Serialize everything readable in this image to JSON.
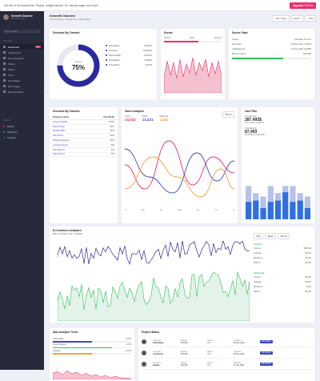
{
  "topbar": {
    "message": "Get this UI Kit components, Plugins, multiple layouts, 20+ sample pages, and more!",
    "upgrade": "Upgrade To Pro"
  },
  "sidebar": {
    "user": {
      "name": "Kenneth Osborne",
      "role": "Web Developer"
    },
    "search_placeholder": "Type to search",
    "section_main": "Main Menu",
    "items": [
      {
        "label": "Dashboard",
        "badge": "New"
      },
      {
        "label": "UI Elements"
      },
      {
        "label": "Form elements"
      },
      {
        "label": "Charts"
      },
      {
        "label": "Tables"
      },
      {
        "label": "Icons"
      },
      {
        "label": "User Pages"
      },
      {
        "label": "Error pages"
      },
      {
        "label": "Documentation"
      }
    ],
    "section_projects": "Projects",
    "projects": [
      {
        "label": "Mobile",
        "color": "#ef2d6b"
      },
      {
        "label": "Marketing",
        "color": "#2fbf5a"
      },
      {
        "label": "Network",
        "color": "#3b46c4"
      }
    ]
  },
  "header": {
    "title": "Kenneth Osborne",
    "subtitle": "Your last login: 21h ago from newzealand",
    "actions": [
      "Last 7 days",
      "Export",
      "+ Add"
    ]
  },
  "sessions": {
    "title": "Sessions By Channel",
    "pct": "75%",
    "label": "Score",
    "items": [
      {
        "name": "Firewalls(3)",
        "val": "4(100%)"
      },
      {
        "name": "Ports(12)",
        "val": "12(100%)"
      },
      {
        "name": "Servers(233)",
        "val": "2(100%)"
      },
      {
        "name": "Firewalls(3)",
        "val": "7(100%)"
      },
      {
        "name": "Firewalls(3)",
        "val": "6(70%)"
      }
    ]
  },
  "events": {
    "title": "Events",
    "tabs": [
      "Critical",
      "Error",
      "Warning"
    ],
    "error_value": 0.3,
    "warning_value": 0.6
  },
  "device": {
    "title": "Device Stats",
    "rows": [
      {
        "k": "Uptime",
        "v": "195 Days, 8 hours"
      },
      {
        "k": "First Seen",
        "v": "23 Sep 2019, 2.04PM"
      },
      {
        "k": "Collected time",
        "v": "23 Sep 2019, 2.04PM"
      },
      {
        "k": "Memory space",
        "v": "168.3GB"
      }
    ],
    "memory_pct": 0.65
  },
  "sessions_table": {
    "title": "Sessions By Channel",
    "headers": [
      "Employee Name",
      "This Month"
    ],
    "rows": [
      {
        "n": "Connor Chandler",
        "v": "$ 4909"
      },
      {
        "n": "Russell Floyd",
        "v": "$857"
      },
      {
        "n": "Douglas White",
        "v": "$612"
      },
      {
        "n": "Alta Fletcher",
        "v": "$233"
      },
      {
        "n": "Marguerite Pearson",
        "v": "$233"
      },
      {
        "n": "Leonard Gutierrez",
        "v": "$35"
      },
      {
        "n": "Helen Benson",
        "v": "$43"
      },
      {
        "n": "Helen Benson",
        "v": "$43"
      }
    ]
  },
  "sales": {
    "title": "Sales Analytics",
    "button": "Month",
    "stats": [
      {
        "label": "Online",
        "value": "23,342",
        "color": "#ef2d6b"
      },
      {
        "label": "Offline",
        "value": "13,221",
        "color": "#3b46c4"
      },
      {
        "label": "Marketing",
        "value": "1,542",
        "color": "#f0a33a"
      }
    ],
    "months": [
      "Feb",
      "Mar",
      "Apr",
      "May",
      "Jun",
      "Jul",
      "Aug"
    ]
  },
  "cardtitle": {
    "title": "Card Title",
    "s1_label": "Total Earning",
    "s1_value": "287,493$",
    "s1_sub": "1.4% Since Last Month",
    "s2_label": "Total Earning",
    "s2_value": "87,493",
    "s2_sub": "5.43% Since Last Month",
    "bars": [
      {
        "a": 0.42,
        "b": 0.8
      },
      {
        "a": 0.45,
        "b": 0.63
      },
      {
        "a": 0.27,
        "b": 0.55
      },
      {
        "a": 0.42,
        "b": 0.8
      },
      {
        "a": 0.45,
        "b": 0.63
      },
      {
        "a": 0.65,
        "b": 0.8
      },
      {
        "a": 0.42,
        "b": 0.8
      },
      {
        "a": 0.45,
        "b": 0.63
      },
      {
        "a": 0.27,
        "b": 0.55
      }
    ]
  },
  "ecommerce": {
    "title": "E-Commerce Analytics",
    "range": "Mon 1 Jul 2019 - Tue 2 Jul 2019",
    "tabs": [
      "Day",
      "Week",
      "Month"
    ],
    "visits": {
      "label": "Visitors",
      "rows": [
        {
          "k": "Current",
          "v": "956,254"
        },
        {
          "k": "Average",
          "v": "69,261"
        },
        {
          "k": "Maximum",
          "v": "30,254"
        },
        {
          "k": "60th %",
          "v": "22,220"
        }
      ]
    },
    "outbound": {
      "label": "Outbound",
      "rows": [
        {
          "k": "Current",
          "v": "65,254"
        },
        {
          "k": "Average",
          "v": "25,261"
        },
        {
          "k": "Maximum",
          "v": "4,254"
        },
        {
          "k": "60th %",
          "v": "18,220"
        }
      ]
    }
  },
  "trend": {
    "title": "Sale Analysis Trend",
    "rows": [
      {
        "k": "Order Value",
        "v": "12.3%",
        "pct": 0.5,
        "color": "#3b46c4"
      },
      {
        "k": "Total Products",
        "v": "3.6%",
        "pct": 0.75,
        "color": "#2fbf5a"
      },
      {
        "k": "Quantity",
        "v": "12.3%",
        "pct": 0.5,
        "color": "#f0a33a"
      }
    ]
  },
  "project": {
    "title": "Project Status",
    "rows": [
      {
        "co": "Company",
        "name": "Volkswagen",
        "budget": "$74,000",
        "status": "68%",
        "deadline": "06 Nov 2019",
        "action": "edit actions"
      },
      {
        "co": "Company",
        "name": "Land Rover",
        "budget": "$74,000",
        "status": "68%",
        "deadline": "06 Nov 2019",
        "action": "edit actions"
      },
      {
        "co": "Company",
        "name": "Bentley",
        "budget": "$74,000",
        "status": "68%",
        "deadline": "11 Jan 2019",
        "action": "edit actions"
      }
    ],
    "labels": [
      "Budget",
      "Status",
      "Deadline"
    ]
  }
}
